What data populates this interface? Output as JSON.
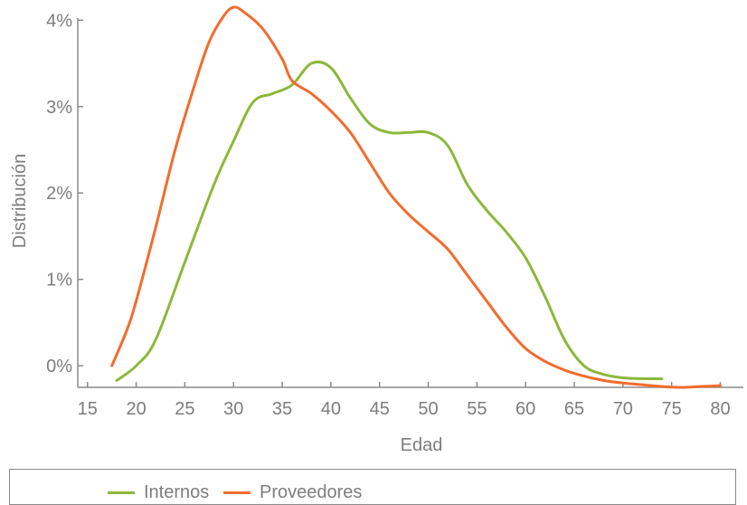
{
  "chart_data": {
    "type": "line",
    "xlabel": "Edad",
    "ylabel": "Distribución",
    "xlim": [
      14,
      82
    ],
    "ylim": [
      -0.25,
      4.15
    ],
    "x_ticks": [
      15,
      20,
      25,
      30,
      35,
      40,
      45,
      50,
      55,
      60,
      65,
      70,
      75,
      80
    ],
    "y_ticks": [
      {
        "value": 0,
        "label": "0%"
      },
      {
        "value": 1,
        "label": "1%"
      },
      {
        "value": 2,
        "label": "2%"
      },
      {
        "value": 3,
        "label": "3%"
      },
      {
        "value": 4,
        "label": "4%"
      }
    ],
    "grid": false,
    "legend_position": "bottom",
    "series": [
      {
        "name": "Internos",
        "color": "#8db83c",
        "points": [
          [
            18,
            -0.17
          ],
          [
            20,
            0
          ],
          [
            22,
            0.3
          ],
          [
            25,
            1.2
          ],
          [
            28,
            2.1
          ],
          [
            30,
            2.6
          ],
          [
            32,
            3.05
          ],
          [
            34,
            3.15
          ],
          [
            36,
            3.25
          ],
          [
            38,
            3.5
          ],
          [
            40,
            3.45
          ],
          [
            42,
            3.1
          ],
          [
            44,
            2.8
          ],
          [
            46,
            2.7
          ],
          [
            48,
            2.7
          ],
          [
            50,
            2.7
          ],
          [
            52,
            2.55
          ],
          [
            54,
            2.1
          ],
          [
            56,
            1.8
          ],
          [
            58,
            1.55
          ],
          [
            60,
            1.25
          ],
          [
            62,
            0.8
          ],
          [
            64,
            0.3
          ],
          [
            66,
            0
          ],
          [
            68,
            -0.1
          ],
          [
            70,
            -0.14
          ],
          [
            72,
            -0.15
          ],
          [
            74,
            -0.15
          ]
        ]
      },
      {
        "name": "Proveedores",
        "color": "#f26c2e",
        "points": [
          [
            17.5,
            0
          ],
          [
            19,
            0.4
          ],
          [
            20,
            0.75
          ],
          [
            22,
            1.6
          ],
          [
            24,
            2.5
          ],
          [
            26,
            3.25
          ],
          [
            27.5,
            3.75
          ],
          [
            29,
            4.05
          ],
          [
            30,
            4.15
          ],
          [
            31,
            4.1
          ],
          [
            33,
            3.9
          ],
          [
            35,
            3.55
          ],
          [
            36,
            3.3
          ],
          [
            38,
            3.15
          ],
          [
            40,
            2.95
          ],
          [
            42,
            2.7
          ],
          [
            44,
            2.35
          ],
          [
            46,
            2
          ],
          [
            48,
            1.75
          ],
          [
            50,
            1.55
          ],
          [
            52,
            1.35
          ],
          [
            54,
            1.05
          ],
          [
            56,
            0.75
          ],
          [
            58,
            0.45
          ],
          [
            60,
            0.2
          ],
          [
            62,
            0.05
          ],
          [
            64,
            -0.05
          ],
          [
            66,
            -0.12
          ],
          [
            68,
            -0.17
          ],
          [
            70,
            -0.2
          ],
          [
            72,
            -0.22
          ],
          [
            74,
            -0.24
          ],
          [
            76,
            -0.25
          ],
          [
            78,
            -0.24
          ],
          [
            80,
            -0.23
          ]
        ]
      }
    ]
  }
}
